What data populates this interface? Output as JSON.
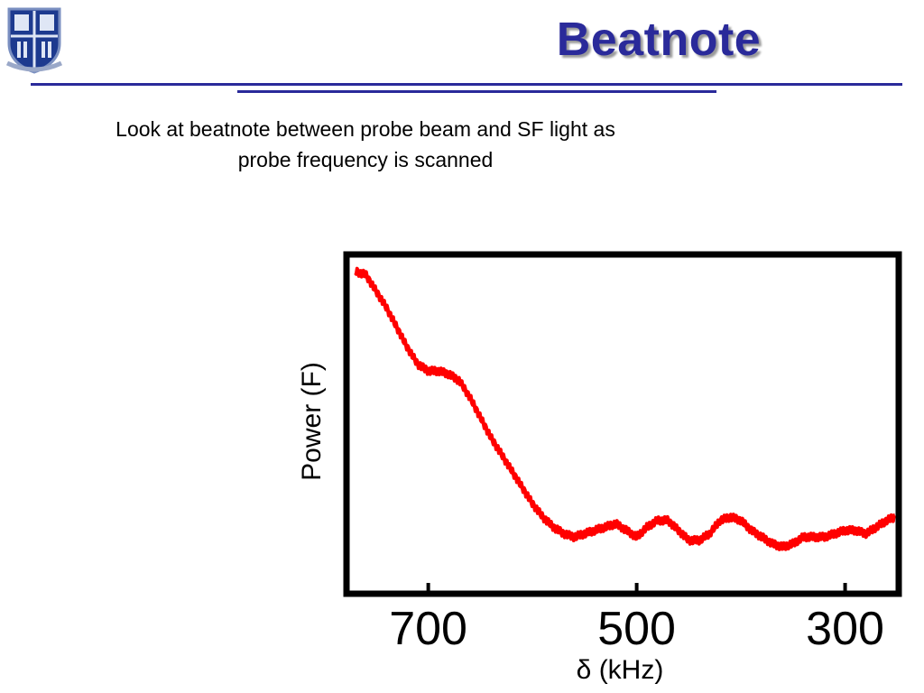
{
  "slide": {
    "title": "Beatnote",
    "caption_line1": "Look at beatnote between probe beam and SF light as",
    "caption_line2": "probe frequency is scanned",
    "accent_color": "#2a2a9a",
    "logo_icon": "university-shield-icon"
  },
  "chart_data": {
    "type": "line",
    "title": "",
    "xlabel": "δ (kHz)",
    "ylabel": "Power (F)",
    "xlim": [
      775,
      252
    ],
    "tick_values": [
      700,
      500,
      300
    ],
    "tick_labels": [
      "700",
      "500",
      "300"
    ],
    "tick_prefix_glyph": "",
    "ylim": [
      0,
      1
    ],
    "grid": false,
    "series": [
      {
        "color": "#ff0000",
        "x": [
          770,
          760,
          750,
          740,
          730,
          720,
          710,
          700,
          690,
          680,
          670,
          660,
          650,
          640,
          630,
          620,
          610,
          600,
          590,
          580,
          570,
          560,
          550,
          540,
          530,
          520,
          510,
          500,
          490,
          480,
          470,
          460,
          450,
          440,
          430,
          420,
          410,
          400,
          390,
          380,
          370,
          360,
          350,
          340,
          330,
          320,
          310,
          300,
          290,
          280,
          270,
          260,
          252
        ],
        "values": [
          0.96,
          0.95,
          0.9,
          0.85,
          0.79,
          0.73,
          0.68,
          0.66,
          0.66,
          0.65,
          0.63,
          0.58,
          0.52,
          0.46,
          0.41,
          0.36,
          0.31,
          0.26,
          0.22,
          0.19,
          0.17,
          0.16,
          0.17,
          0.18,
          0.19,
          0.2,
          0.18,
          0.16,
          0.19,
          0.21,
          0.21,
          0.18,
          0.15,
          0.15,
          0.17,
          0.21,
          0.22,
          0.21,
          0.18,
          0.16,
          0.14,
          0.13,
          0.14,
          0.16,
          0.16,
          0.16,
          0.17,
          0.18,
          0.18,
          0.17,
          0.19,
          0.21,
          0.22
        ]
      }
    ]
  }
}
